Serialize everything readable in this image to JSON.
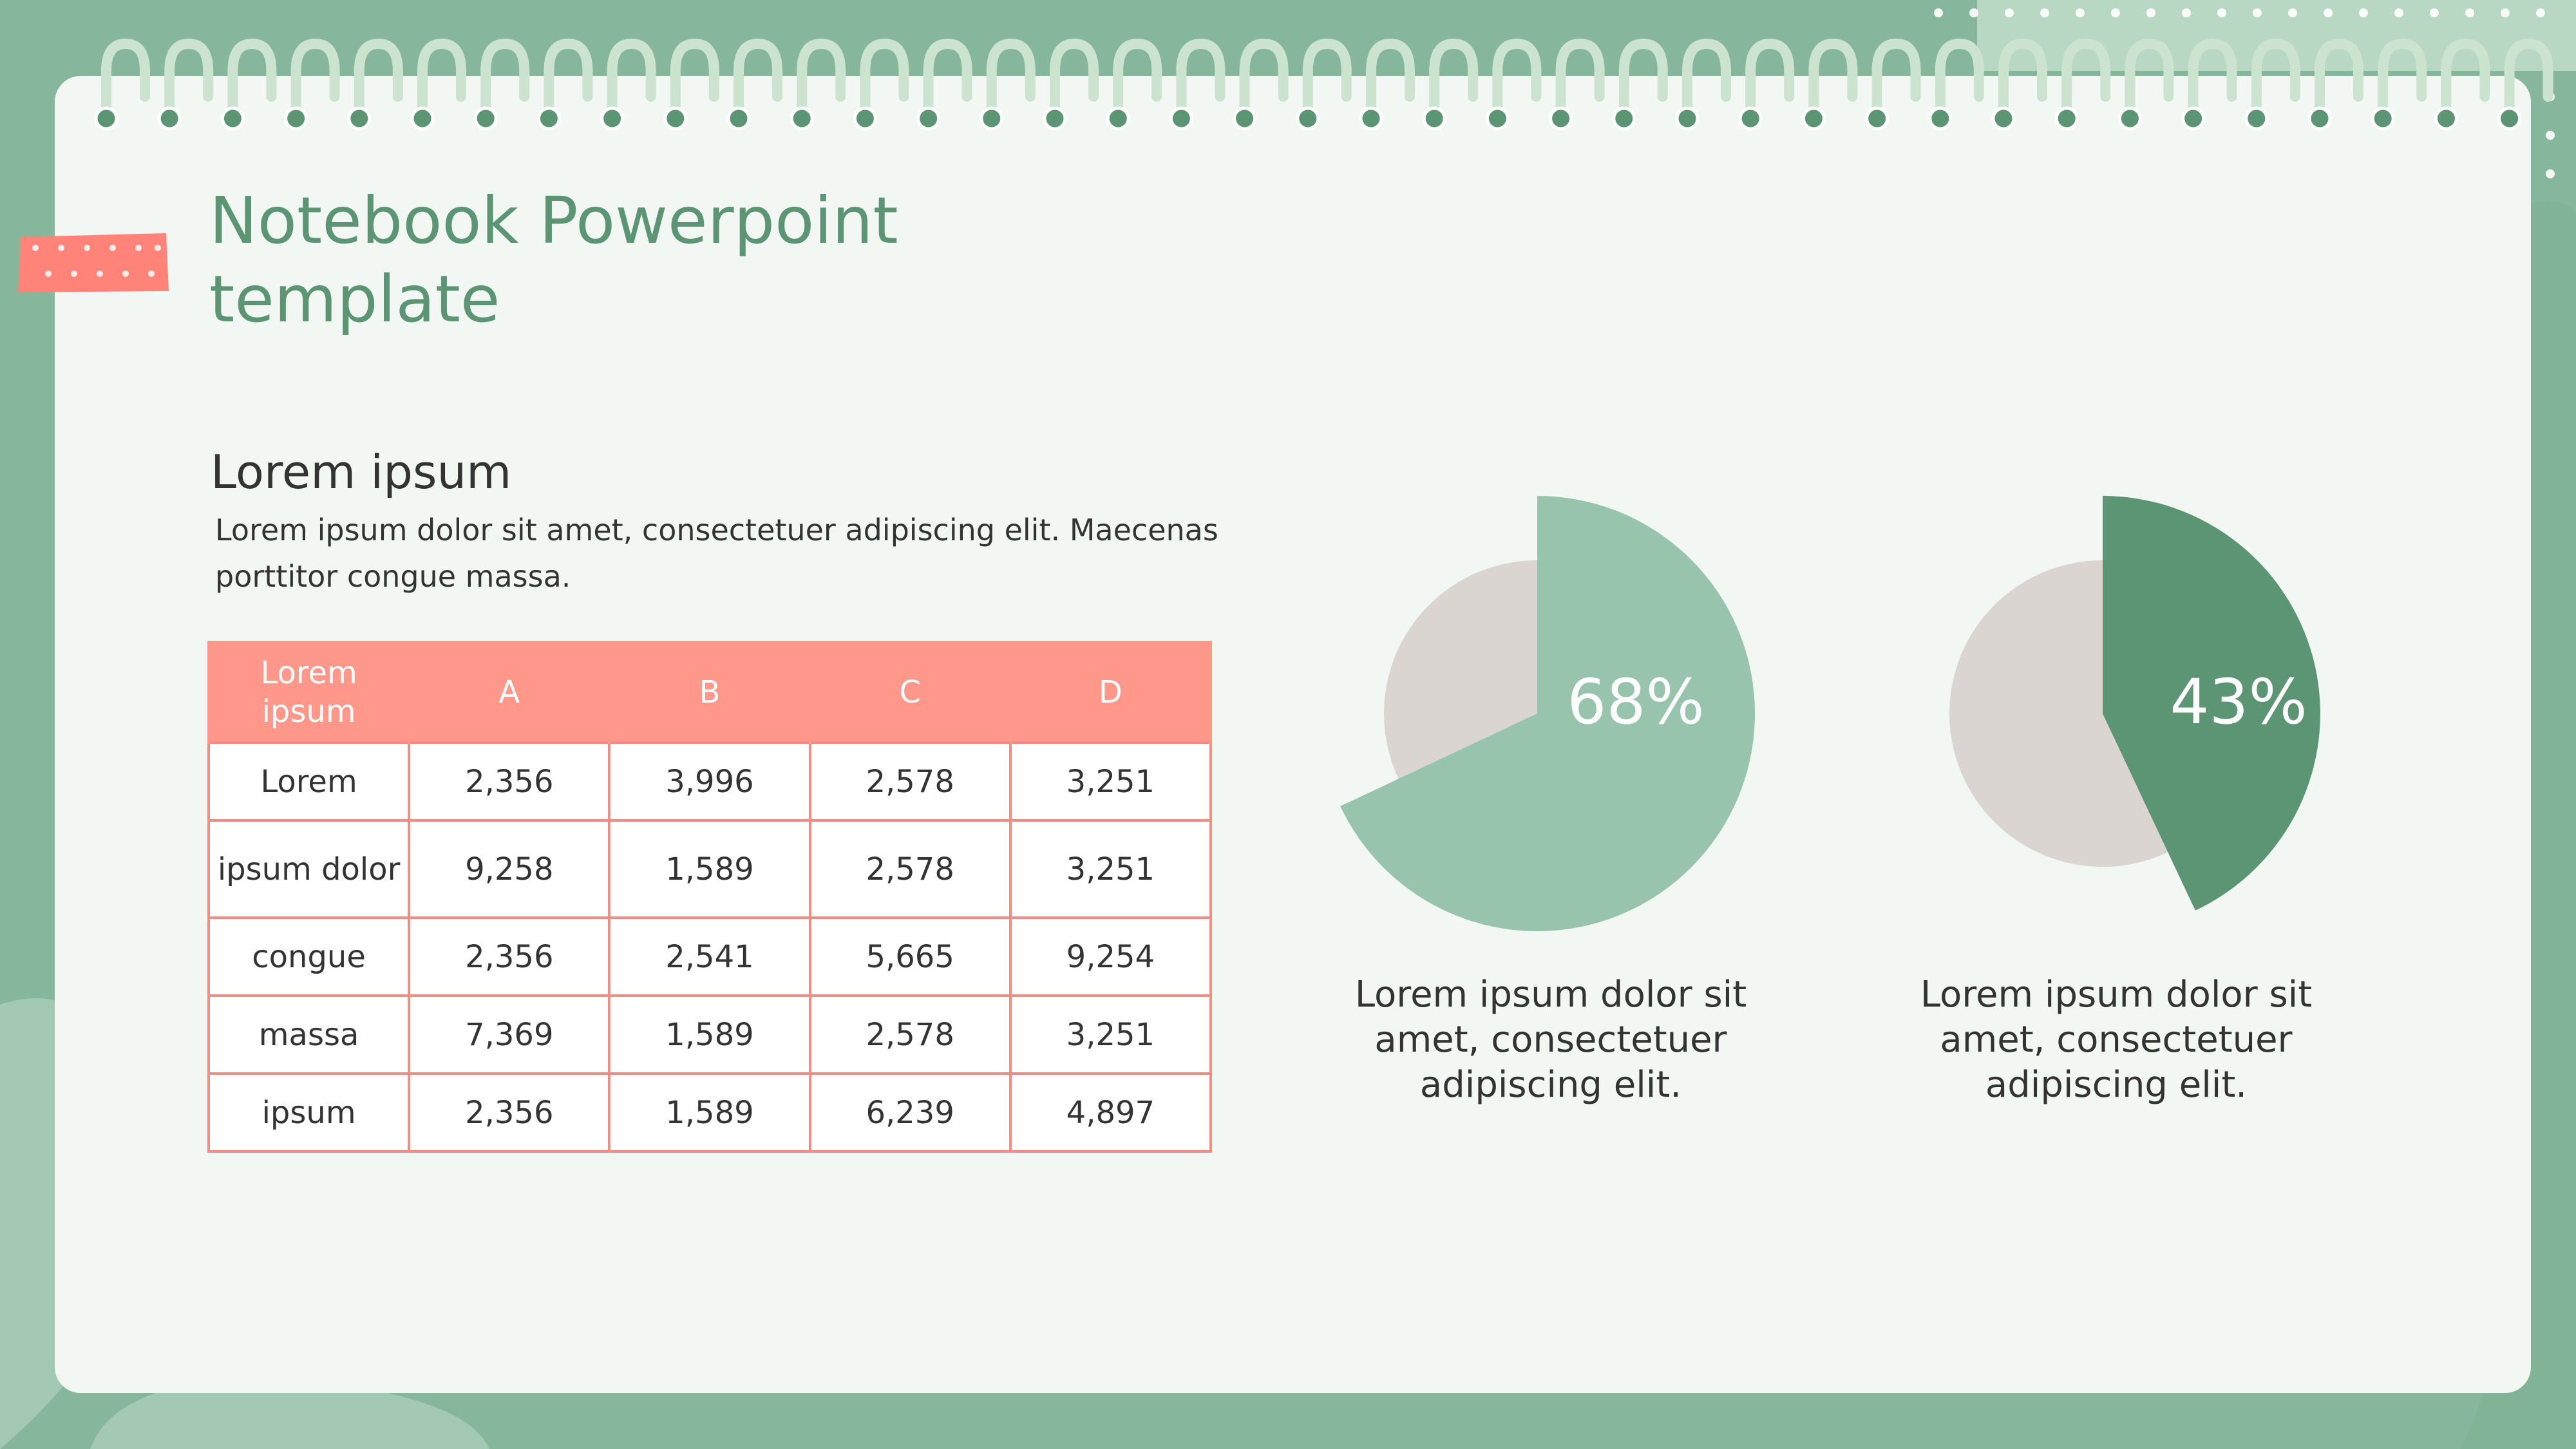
{
  "slide": {
    "title": "Notebook Powerpoint template",
    "section_heading": "Lorem ipsum",
    "section_body": "Lorem ipsum dolor sit amet, consectetuer adipiscing elit. Maecenas porttitor congue massa."
  },
  "table": {
    "headers": [
      "Lorem ipsum",
      "A",
      "B",
      "C",
      "D"
    ],
    "rows": [
      [
        "Lorem",
        "2,356",
        "3,996",
        "2,578",
        "3,251"
      ],
      [
        "ipsum dolor",
        "9,258",
        "1,589",
        "2,578",
        "3,251"
      ],
      [
        "congue",
        "2,356",
        "2,541",
        "5,665",
        "9,254"
      ],
      [
        "massa",
        "7,369",
        "1,589",
        "2,578",
        "3,251"
      ],
      [
        "ipsum",
        "2,356",
        "1,589",
        "6,239",
        "4,897"
      ]
    ]
  },
  "chart_data": [
    {
      "type": "pie",
      "values": [
        68,
        32
      ],
      "data_label": "68%",
      "caption": "Lorem ipsum dolor sit amet, consectetuer adipiscing elit.",
      "colors": [
        "#98c3ad",
        "#dad5d0"
      ]
    },
    {
      "type": "pie",
      "values": [
        43,
        57
      ],
      "data_label": "43%",
      "caption": "Lorem ipsum dolor sit amet, consectetuer adipiscing elit.",
      "colors": [
        "#5b9573",
        "#dad5d0"
      ]
    }
  ],
  "colors": {
    "background": "#86b79c",
    "paper": "#f3f7f3",
    "title": "#5b9573",
    "table_header": "#ff978a",
    "table_border": "#ef8d86",
    "tape": "#ff8378",
    "ring": "#cbe3cf",
    "hole": "#5b9573"
  }
}
